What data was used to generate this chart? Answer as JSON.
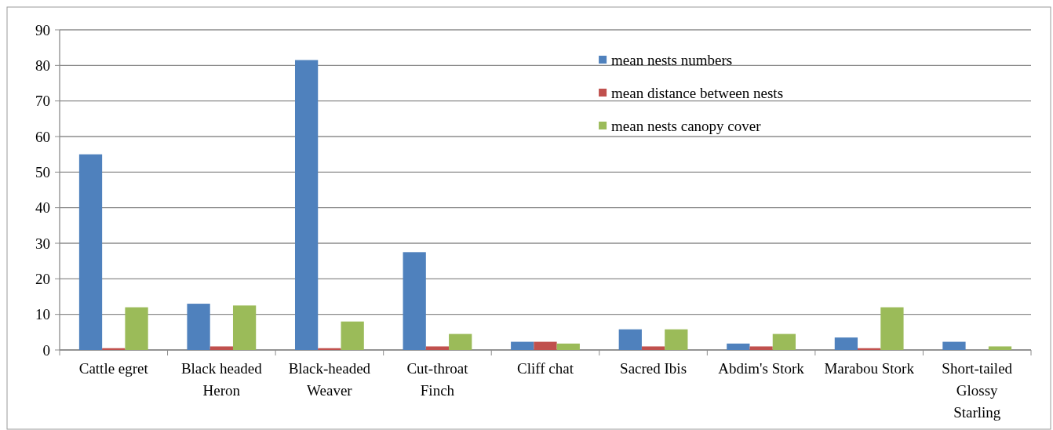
{
  "chart_data": {
    "type": "bar",
    "categories": [
      "Cattle egret",
      "Black headed Heron",
      "Black-headed Weaver",
      "Cut-throat Finch",
      "Cliff chat",
      "Sacred Ibis",
      "Abdim's Stork",
      "Marabou Stork",
      "Short-tailed Glossy Starling"
    ],
    "series": [
      {
        "name": "mean nests numbers",
        "color": "#4f81bd",
        "values": [
          55,
          13,
          81.5,
          27.5,
          2.3,
          5.8,
          1.8,
          3.5,
          2.3
        ]
      },
      {
        "name": "mean distance between nests",
        "color": "#c0504d",
        "values": [
          0.5,
          1,
          0.5,
          1,
          2.3,
          1,
          1,
          0.5,
          0
        ]
      },
      {
        "name": "mean nests canopy cover",
        "color": "#9bbb59",
        "values": [
          12,
          12.5,
          8,
          4.5,
          1.8,
          5.8,
          4.5,
          12,
          1
        ]
      }
    ],
    "ylim": [
      0,
      90
    ],
    "yticks": [
      0,
      10,
      20,
      30,
      40,
      50,
      60,
      70,
      80,
      90
    ],
    "grid": "y",
    "legend": "top right"
  }
}
